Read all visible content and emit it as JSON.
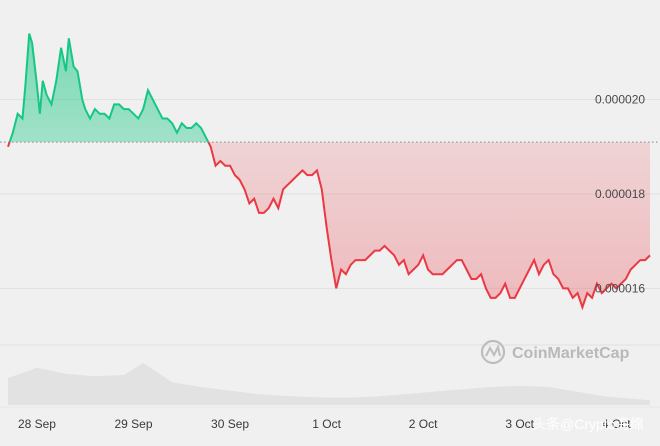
{
  "chart_data": {
    "type": "area",
    "title": "",
    "xlabel": "",
    "ylabel": "",
    "baseline": 1.91e-05,
    "ylim": [
      1.48e-05,
      2.19e-05
    ],
    "y_ticks": [
      "0.000020",
      "0.000018",
      "0.000016"
    ],
    "y_tick_values": [
      2e-05,
      1.8e-05,
      1.6e-05
    ],
    "x_ticks": [
      "28 Sep",
      "29 Sep",
      "30 Sep",
      "1 Oct",
      "2 Oct",
      "3 Oct",
      "4 Oct"
    ],
    "x_tick_days": [
      1,
      2,
      3,
      4,
      5,
      6,
      7
    ],
    "x_range_days": [
      0.7,
      7.35
    ],
    "colors": {
      "up_line": "#16c784",
      "up_fill": "#16c784",
      "down_line": "#ea3943",
      "down_fill": "#ea3943",
      "baseline": "#999999",
      "volume": "#e2e2e2"
    },
    "series": [
      {
        "x": [
          0.7,
          0.75,
          0.8,
          0.85,
          0.88,
          0.92,
          0.95,
          1.0,
          1.03,
          1.06,
          1.1,
          1.15,
          1.2,
          1.25,
          1.3,
          1.33,
          1.38,
          1.42,
          1.47,
          1.5,
          1.55,
          1.6,
          1.65,
          1.7,
          1.75,
          1.8,
          1.85,
          1.9,
          1.95,
          2.0,
          2.05,
          2.1,
          2.15,
          2.2,
          2.25,
          2.3,
          2.35,
          2.4,
          2.45,
          2.5,
          2.55,
          2.6,
          2.65,
          2.7,
          2.75,
          2.8,
          2.85,
          2.9,
          2.95,
          3.0,
          3.05,
          3.1,
          3.15,
          3.2,
          3.25,
          3.3,
          3.35,
          3.4,
          3.45,
          3.5,
          3.55,
          3.6,
          3.65,
          3.7,
          3.75,
          3.8,
          3.85,
          3.9,
          3.95,
          4.0,
          4.05,
          4.1,
          4.15,
          4.2,
          4.25,
          4.3,
          4.35,
          4.4,
          4.45,
          4.5,
          4.55,
          4.6,
          4.65,
          4.7,
          4.75,
          4.8,
          4.85,
          4.9,
          4.95,
          5.0,
          5.05,
          5.1,
          5.15,
          5.2,
          5.25,
          5.3,
          5.35,
          5.4,
          5.45,
          5.5,
          5.55,
          5.6,
          5.65,
          5.7,
          5.75,
          5.8,
          5.85,
          5.9,
          5.95,
          6.0,
          6.05,
          6.1,
          6.15,
          6.2,
          6.25,
          6.3,
          6.35,
          6.4,
          6.45,
          6.5,
          6.55,
          6.6,
          6.65,
          6.7,
          6.75,
          6.8,
          6.85,
          6.9,
          6.95,
          7.0,
          7.05,
          7.1,
          7.15,
          7.2,
          7.25,
          7.3,
          7.35
        ],
        "y": [
          1.9e-05,
          1.93e-05,
          1.97e-05,
          1.96e-05,
          2.03e-05,
          2.14e-05,
          2.12e-05,
          2.03e-05,
          1.97e-05,
          2.04e-05,
          2.01e-05,
          1.99e-05,
          2.04e-05,
          2.11e-05,
          2.06e-05,
          2.13e-05,
          2.07e-05,
          2.06e-05,
          2e-05,
          1.98e-05,
          1.96e-05,
          1.98e-05,
          1.97e-05,
          1.97e-05,
          1.96e-05,
          1.99e-05,
          1.99e-05,
          1.98e-05,
          1.98e-05,
          1.97e-05,
          1.96e-05,
          1.98e-05,
          2.02e-05,
          2e-05,
          1.98e-05,
          1.96e-05,
          1.96e-05,
          1.95e-05,
          1.93e-05,
          1.95e-05,
          1.94e-05,
          1.94e-05,
          1.95e-05,
          1.94e-05,
          1.92e-05,
          1.9e-05,
          1.86e-05,
          1.87e-05,
          1.86e-05,
          1.86e-05,
          1.84e-05,
          1.83e-05,
          1.81e-05,
          1.78e-05,
          1.79e-05,
          1.76e-05,
          1.76e-05,
          1.77e-05,
          1.79e-05,
          1.77e-05,
          1.81e-05,
          1.82e-05,
          1.83e-05,
          1.84e-05,
          1.85e-05,
          1.84e-05,
          1.84e-05,
          1.85e-05,
          1.81e-05,
          1.73e-05,
          1.66e-05,
          1.6e-05,
          1.64e-05,
          1.63e-05,
          1.65e-05,
          1.66e-05,
          1.66e-05,
          1.66e-05,
          1.67e-05,
          1.68e-05,
          1.68e-05,
          1.69e-05,
          1.68e-05,
          1.67e-05,
          1.65e-05,
          1.66e-05,
          1.63e-05,
          1.64e-05,
          1.65e-05,
          1.67e-05,
          1.64e-05,
          1.63e-05,
          1.63e-05,
          1.63e-05,
          1.64e-05,
          1.65e-05,
          1.66e-05,
          1.66e-05,
          1.64e-05,
          1.62e-05,
          1.62e-05,
          1.63e-05,
          1.6e-05,
          1.58e-05,
          1.58e-05,
          1.59e-05,
          1.61e-05,
          1.58e-05,
          1.58e-05,
          1.6e-05,
          1.62e-05,
          1.64e-05,
          1.66e-05,
          1.63e-05,
          1.65e-05,
          1.66e-05,
          1.63e-05,
          1.62e-05,
          1.6e-05,
          1.6e-05,
          1.58e-05,
          1.59e-05,
          1.56e-05,
          1.59e-05,
          1.58e-05,
          1.61e-05,
          1.59e-05,
          1.6e-05,
          1.61e-05,
          1.6e-05,
          1.61e-05,
          1.62e-05,
          1.64e-05,
          1.65e-05,
          1.66e-05,
          1.66e-05,
          1.67e-05
        ]
      }
    ],
    "volume": {
      "x": [
        0.7,
        1.0,
        1.3,
        1.6,
        1.9,
        2.1,
        2.4,
        2.7,
        3.0,
        3.3,
        3.6,
        3.9,
        4.2,
        4.5,
        4.8,
        5.1,
        5.4,
        5.7,
        6.0,
        6.3,
        6.6,
        6.9,
        7.2,
        7.35
      ],
      "v": [
        0.45,
        0.62,
        0.52,
        0.48,
        0.5,
        0.7,
        0.38,
        0.3,
        0.24,
        0.18,
        0.15,
        0.13,
        0.12,
        0.14,
        0.18,
        0.22,
        0.26,
        0.3,
        0.32,
        0.3,
        0.22,
        0.14,
        0.1,
        0.08
      ]
    },
    "watermark": "CoinMarketCap",
    "source_tag": "头条@Crypto海绵"
  }
}
